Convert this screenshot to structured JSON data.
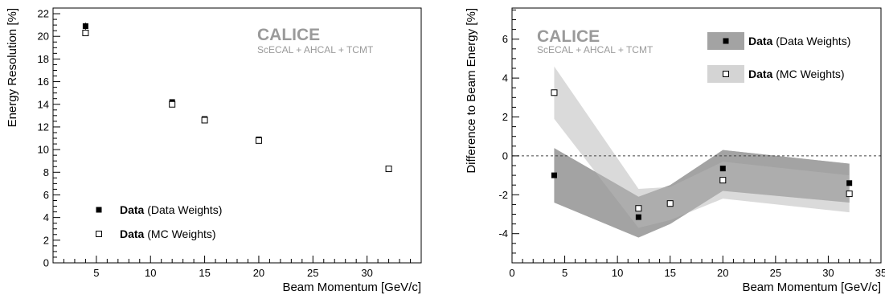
{
  "chart_data": [
    {
      "type": "scatter",
      "xlabel": "Beam Momentum [GeV/c]",
      "ylabel": "Energy Resolution [%]",
      "xlim": [
        1,
        35
      ],
      "ylim": [
        0,
        22.5
      ],
      "xticks": [
        5,
        10,
        15,
        20,
        25,
        30
      ],
      "yticks": [
        0,
        2,
        4,
        6,
        8,
        10,
        12,
        14,
        16,
        18,
        20,
        22
      ],
      "watermark": {
        "title": "CALICE",
        "subtitle": "ScECAL + AHCAL + TCMT"
      },
      "legend": {
        "placement": "bottom-left"
      },
      "series": [
        {
          "name": "Data",
          "name_suffix": "(Data Weights)",
          "marker": "filled-square",
          "x": [
            4,
            12,
            15,
            20,
            32
          ],
          "y": [
            20.9,
            14.2,
            12.7,
            10.9,
            8.3
          ],
          "yerr": [
            0.3,
            0.15,
            0.15,
            0.15,
            0.15
          ]
        },
        {
          "name": "Data",
          "name_suffix": "(MC Weights)",
          "marker": "open-square",
          "x": [
            4,
            12,
            15,
            20,
            32
          ],
          "y": [
            20.3,
            14.0,
            12.6,
            10.8,
            8.3
          ]
        }
      ]
    },
    {
      "type": "scatter",
      "xlabel": "Beam Momentum [GeV/c]",
      "ylabel": "Difference to Beam Energy [%]",
      "xlim": [
        0,
        35
      ],
      "ylim": [
        -5.5,
        7.6
      ],
      "xticks": [
        0,
        5,
        10,
        15,
        20,
        25,
        30,
        35
      ],
      "yticks": [
        -4,
        -2,
        0,
        2,
        4,
        6
      ],
      "reference_line": 0,
      "watermark": {
        "title": "CALICE",
        "subtitle": "ScECAL + AHCAL + TCMT"
      },
      "legend": {
        "placement": "top-right"
      },
      "series": [
        {
          "name": "Data",
          "name_suffix": "(Data Weights)",
          "marker": "filled-square",
          "band_color": "#a3a3a3",
          "x": [
            4,
            12,
            15,
            20,
            32
          ],
          "y": [
            -1.0,
            -3.15,
            -2.45,
            -0.65,
            -1.4
          ],
          "band_lo": [
            -2.4,
            -4.2,
            -3.5,
            -1.8,
            -2.4
          ],
          "band_hi": [
            0.4,
            -2.1,
            -1.5,
            0.3,
            -0.4
          ]
        },
        {
          "name": "Data",
          "name_suffix": "(MC Weights)",
          "marker": "open-square",
          "band_color": "#d4d4d4",
          "x": [
            4,
            12,
            15,
            20,
            32
          ],
          "y": [
            3.25,
            -2.7,
            -2.45,
            -1.25,
            -1.95
          ],
          "band_lo": [
            1.9,
            -3.7,
            -3.3,
            -2.2,
            -2.9
          ],
          "band_hi": [
            4.6,
            -1.7,
            -1.6,
            -0.3,
            -1.0
          ]
        }
      ]
    }
  ]
}
